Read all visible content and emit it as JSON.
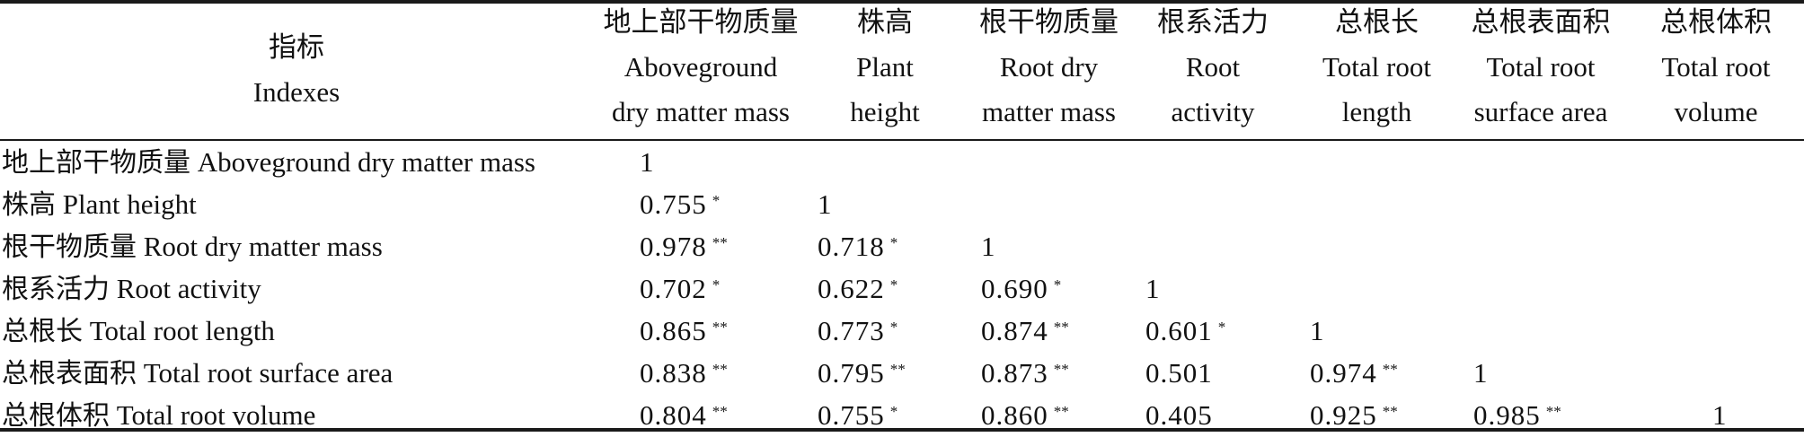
{
  "header": {
    "index": {
      "zh": "指标",
      "en": "Indexes"
    },
    "columns": [
      {
        "zh": "地上部干物质量",
        "en1": "Aboveground",
        "en2": "dry matter mass"
      },
      {
        "zh": "株高",
        "en1": "Plant",
        "en2": "height"
      },
      {
        "zh": "根干物质量",
        "en1": "Root dry",
        "en2": "matter mass"
      },
      {
        "zh": "根系活力",
        "en1": "Root",
        "en2": "activity"
      },
      {
        "zh": "总根长",
        "en1": "Total root",
        "en2": "length"
      },
      {
        "zh": "总根表面积",
        "en1": "Total root",
        "en2": "surface area"
      },
      {
        "zh": "总根体积",
        "en1": "Total root",
        "en2": "volume"
      }
    ]
  },
  "rows": [
    {
      "zh": "地上部干物质量",
      "en": "Aboveground dry matter mass",
      "cells": [
        {
          "v": "1",
          "s": ""
        }
      ]
    },
    {
      "zh": "株高",
      "en": "Plant height",
      "cells": [
        {
          "v": "0.755",
          "s": "*"
        },
        {
          "v": "1",
          "s": ""
        }
      ]
    },
    {
      "zh": "根干物质量",
      "en": "Root dry matter mass",
      "cells": [
        {
          "v": "0.978",
          "s": "**"
        },
        {
          "v": "0.718",
          "s": "*"
        },
        {
          "v": "1",
          "s": ""
        }
      ]
    },
    {
      "zh": "根系活力",
      "en": "Root activity",
      "cells": [
        {
          "v": "0.702",
          "s": "*"
        },
        {
          "v": "0.622",
          "s": "*"
        },
        {
          "v": "0.690",
          "s": "*"
        },
        {
          "v": "1",
          "s": ""
        }
      ]
    },
    {
      "zh": "总根长",
      "en": "Total root length",
      "cells": [
        {
          "v": "0.865",
          "s": "**"
        },
        {
          "v": "0.773",
          "s": "*"
        },
        {
          "v": "0.874",
          "s": "**"
        },
        {
          "v": "0.601",
          "s": "*"
        },
        {
          "v": "1",
          "s": ""
        }
      ]
    },
    {
      "zh": "总根表面积",
      "en": "Total root surface area",
      "cells": [
        {
          "v": "0.838",
          "s": "**"
        },
        {
          "v": "0.795",
          "s": "**"
        },
        {
          "v": "0.873",
          "s": "**"
        },
        {
          "v": "0.501",
          "s": ""
        },
        {
          "v": "0.974",
          "s": "**"
        },
        {
          "v": "1",
          "s": ""
        }
      ]
    },
    {
      "zh": "总根体积",
      "en": "Total root volume",
      "cells": [
        {
          "v": "0.804",
          "s": "**"
        },
        {
          "v": "0.755",
          "s": "*"
        },
        {
          "v": "0.860",
          "s": "**"
        },
        {
          "v": "0.405",
          "s": ""
        },
        {
          "v": "0.925",
          "s": "**"
        },
        {
          "v": "0.985",
          "s": "**"
        },
        {
          "v": "1",
          "s": ""
        }
      ]
    }
  ]
}
